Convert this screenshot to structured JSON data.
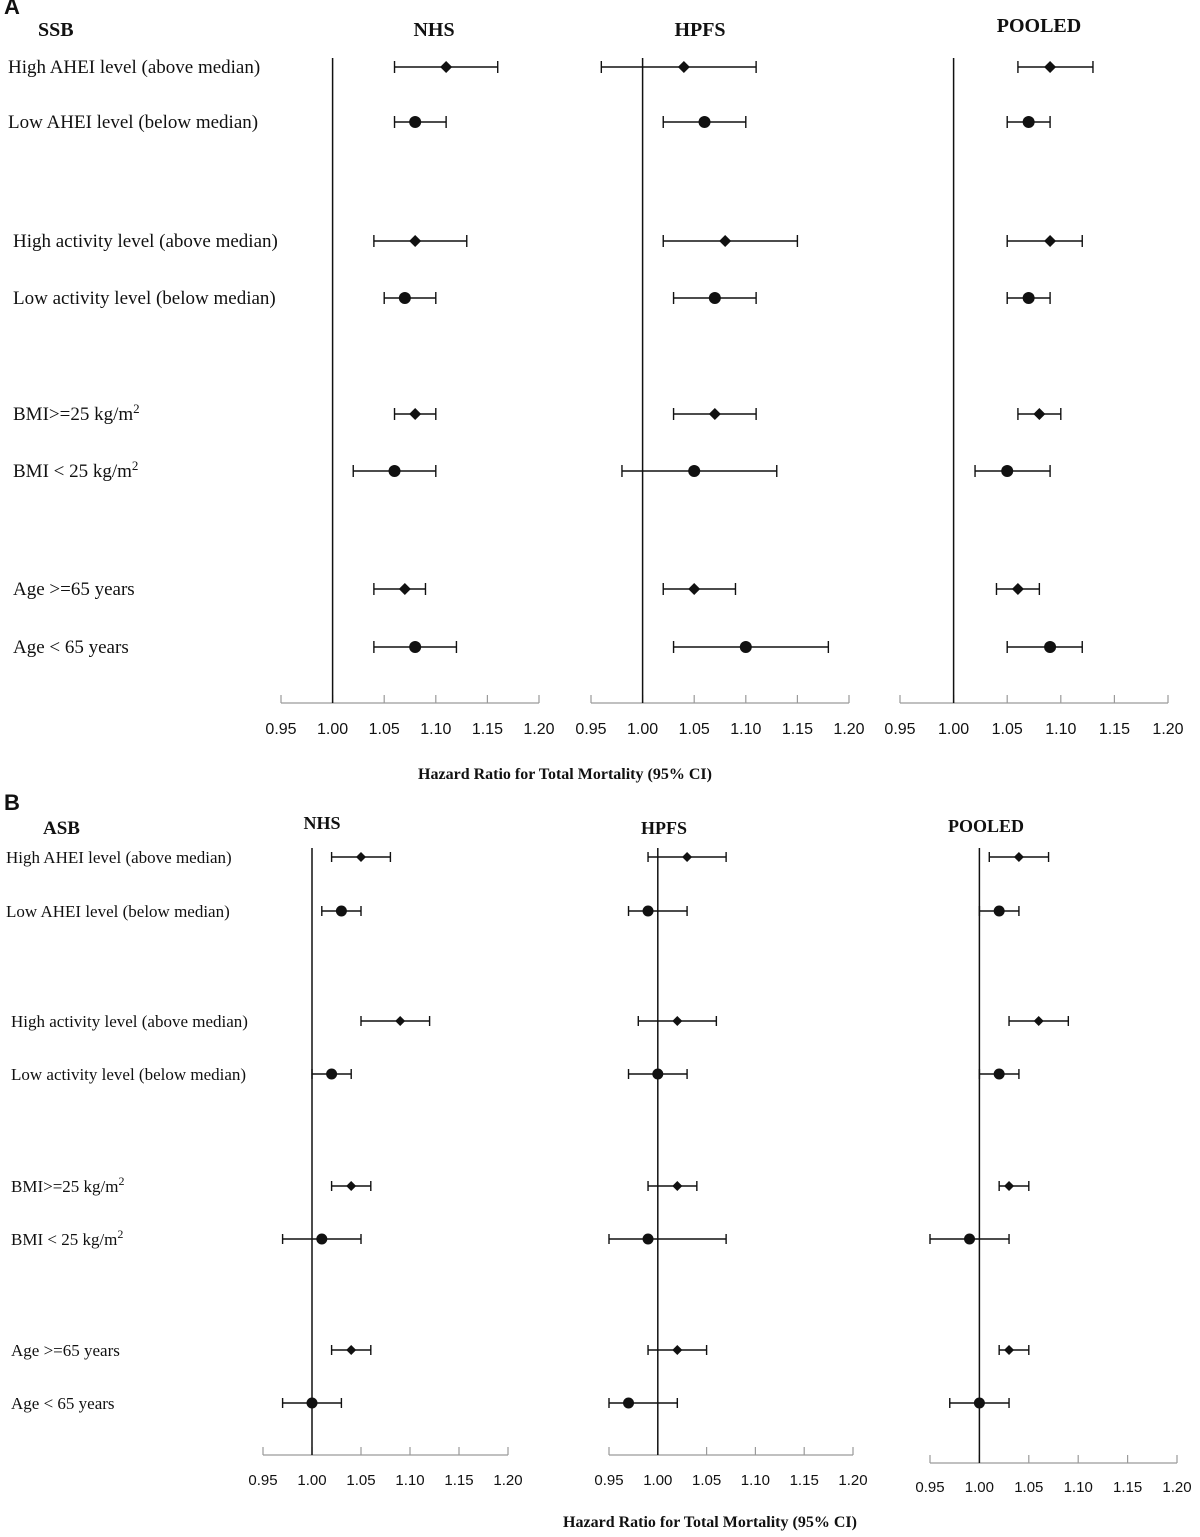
{
  "figure": {
    "panels": [
      {
        "letter": "A",
        "exposure": "SSB",
        "xlabel": "Hazard  Ratio for Total Mortality (95% CI)"
      },
      {
        "letter": "B",
        "exposure": "ASB",
        "xlabel": "Hazard  Ratio for Total Mortality (95% CI)"
      }
    ]
  },
  "chart_data": [
    {
      "type": "forest",
      "panel": "A",
      "exposure": "SSB",
      "xlabel": "Hazard  Ratio for Total Mortality (95% CI)",
      "reference_line": 1.0,
      "xlim": [
        0.95,
        1.2
      ],
      "ticks": [
        "0.95",
        "1.00",
        "1.05",
        "1.10",
        "1.15",
        "1.20"
      ],
      "rows": [
        {
          "label": "High AHEI  level (above median)",
          "marker": "diamond"
        },
        {
          "label": "Low AHEI  level (below median)",
          "marker": "circle"
        },
        {
          "label": "High activity level (above median)",
          "marker": "diamond"
        },
        {
          "label": "Low activity level (below median)",
          "marker": "circle"
        },
        {
          "label": "BMI>=25 kg/m",
          "sup": "2",
          "marker": "diamond"
        },
        {
          "label": "BMI < 25 kg/m",
          "sup": "2",
          "marker": "circle"
        },
        {
          "label": "Age >=65 years",
          "marker": "diamond"
        },
        {
          "label": "Age < 65 years",
          "marker": "circle"
        }
      ],
      "cohorts": [
        {
          "name": "NHS",
          "estimates": [
            {
              "hr": 1.11,
              "lo": 1.06,
              "hi": 1.16
            },
            {
              "hr": 1.08,
              "lo": 1.06,
              "hi": 1.11
            },
            {
              "hr": 1.08,
              "lo": 1.04,
              "hi": 1.13
            },
            {
              "hr": 1.07,
              "lo": 1.05,
              "hi": 1.1
            },
            {
              "hr": 1.08,
              "lo": 1.06,
              "hi": 1.1
            },
            {
              "hr": 1.06,
              "lo": 1.02,
              "hi": 1.1
            },
            {
              "hr": 1.07,
              "lo": 1.04,
              "hi": 1.09
            },
            {
              "hr": 1.08,
              "lo": 1.04,
              "hi": 1.12
            }
          ]
        },
        {
          "name": "HPFS",
          "estimates": [
            {
              "hr": 1.04,
              "lo": 0.96,
              "hi": 1.11
            },
            {
              "hr": 1.06,
              "lo": 1.02,
              "hi": 1.1
            },
            {
              "hr": 1.08,
              "lo": 1.02,
              "hi": 1.15
            },
            {
              "hr": 1.07,
              "lo": 1.03,
              "hi": 1.11
            },
            {
              "hr": 1.07,
              "lo": 1.03,
              "hi": 1.11
            },
            {
              "hr": 1.05,
              "lo": 0.98,
              "hi": 1.13
            },
            {
              "hr": 1.05,
              "lo": 1.02,
              "hi": 1.09
            },
            {
              "hr": 1.1,
              "lo": 1.03,
              "hi": 1.18
            }
          ]
        },
        {
          "name": "POOLED",
          "estimates": [
            {
              "hr": 1.09,
              "lo": 1.06,
              "hi": 1.13
            },
            {
              "hr": 1.07,
              "lo": 1.05,
              "hi": 1.09
            },
            {
              "hr": 1.09,
              "lo": 1.05,
              "hi": 1.12
            },
            {
              "hr": 1.07,
              "lo": 1.05,
              "hi": 1.09
            },
            {
              "hr": 1.08,
              "lo": 1.06,
              "hi": 1.1
            },
            {
              "hr": 1.05,
              "lo": 1.02,
              "hi": 1.09
            },
            {
              "hr": 1.06,
              "lo": 1.04,
              "hi": 1.08
            },
            {
              "hr": 1.09,
              "lo": 1.05,
              "hi": 1.12
            }
          ]
        }
      ]
    },
    {
      "type": "forest",
      "panel": "B",
      "exposure": "ASB",
      "xlabel": "Hazard  Ratio for Total Mortality (95% CI)",
      "reference_line": 1.0,
      "xlim": [
        0.95,
        1.2
      ],
      "ticks": [
        "0.95",
        "1.00",
        "1.05",
        "1.10",
        "1.15",
        "1.20"
      ],
      "rows": [
        {
          "label": "High AHEI level (above median)",
          "marker": "diamond"
        },
        {
          "label": "Low AHEI  level (below median)",
          "marker": "circle"
        },
        {
          "label": "High activity level (above median)",
          "marker": "diamond"
        },
        {
          "label": "Low activity level (below median)",
          "marker": "circle"
        },
        {
          "label": "BMI>=25 kg/m",
          "sup": "2",
          "marker": "diamond"
        },
        {
          "label": "BMI < 25 kg/m",
          "sup": "2",
          "marker": "circle"
        },
        {
          "label": "Age >=65 years",
          "marker": "diamond"
        },
        {
          "label": "Age < 65 years",
          "marker": "circle"
        }
      ],
      "cohorts": [
        {
          "name": "NHS",
          "estimates": [
            {
              "hr": 1.05,
              "lo": 1.02,
              "hi": 1.08
            },
            {
              "hr": 1.03,
              "lo": 1.01,
              "hi": 1.05
            },
            {
              "hr": 1.09,
              "lo": 1.05,
              "hi": 1.12
            },
            {
              "hr": 1.02,
              "lo": 1.0,
              "hi": 1.04
            },
            {
              "hr": 1.04,
              "lo": 1.02,
              "hi": 1.06
            },
            {
              "hr": 1.01,
              "lo": 0.97,
              "hi": 1.05
            },
            {
              "hr": 1.04,
              "lo": 1.02,
              "hi": 1.06
            },
            {
              "hr": 1.0,
              "lo": 0.97,
              "hi": 1.03
            }
          ]
        },
        {
          "name": "HPFS",
          "estimates": [
            {
              "hr": 1.03,
              "lo": 0.99,
              "hi": 1.07
            },
            {
              "hr": 0.99,
              "lo": 0.97,
              "hi": 1.03
            },
            {
              "hr": 1.02,
              "lo": 0.98,
              "hi": 1.06
            },
            {
              "hr": 1.0,
              "lo": 0.97,
              "hi": 1.03
            },
            {
              "hr": 1.02,
              "lo": 0.99,
              "hi": 1.04
            },
            {
              "hr": 0.99,
              "lo": 0.95,
              "hi": 1.07
            },
            {
              "hr": 1.02,
              "lo": 0.99,
              "hi": 1.05
            },
            {
              "hr": 0.97,
              "lo": 0.95,
              "hi": 1.02
            }
          ]
        },
        {
          "name": "POOLED",
          "estimates": [
            {
              "hr": 1.04,
              "lo": 1.01,
              "hi": 1.07
            },
            {
              "hr": 1.02,
              "lo": 1.0,
              "hi": 1.04
            },
            {
              "hr": 1.06,
              "lo": 1.03,
              "hi": 1.09
            },
            {
              "hr": 1.02,
              "lo": 1.0,
              "hi": 1.04
            },
            {
              "hr": 1.03,
              "lo": 1.02,
              "hi": 1.05
            },
            {
              "hr": 0.99,
              "lo": 0.95,
              "hi": 1.03
            },
            {
              "hr": 1.03,
              "lo": 1.02,
              "hi": 1.05
            },
            {
              "hr": 1.0,
              "lo": 0.97,
              "hi": 1.03
            }
          ]
        }
      ]
    }
  ]
}
